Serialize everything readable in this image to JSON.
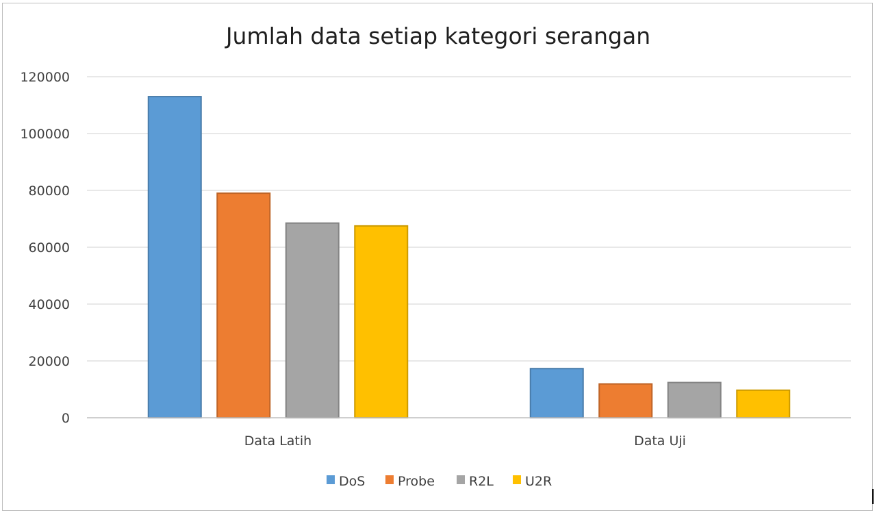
{
  "chart_data": {
    "type": "bar",
    "title": "Jumlah data setiap kategori serangan",
    "xlabel": "",
    "ylabel": "",
    "ylim": [
      0,
      120000
    ],
    "yticks": [
      "0",
      "20000",
      "40000",
      "60000",
      "80000",
      "100000",
      "120000"
    ],
    "categories": [
      "Data Latih",
      "Data Uji"
    ],
    "series": [
      {
        "name": "DoS",
        "color": "#5b9bd5",
        "values": [
          113000,
          17300
        ]
      },
      {
        "name": "Probe",
        "color": "#ed7d31",
        "values": [
          79000,
          11900
        ]
      },
      {
        "name": "R2L",
        "color": "#a5a5a5",
        "values": [
          68500,
          12400
        ]
      },
      {
        "name": "U2R",
        "color": "#ffc000",
        "values": [
          67500,
          9700
        ]
      }
    ],
    "grid": true,
    "legend_position": "bottom"
  }
}
